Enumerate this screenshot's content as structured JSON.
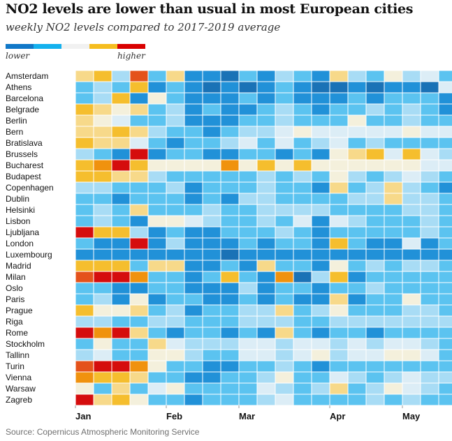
{
  "chart_data": {
    "type": "heatmap",
    "title": "NO2 levels are lower than usual in most European cities",
    "subtitle": "weekly NO2 levels compared to 2017-2019 average",
    "legend": {
      "low_label": "lower",
      "high_label": "higher",
      "scale": [
        -3,
        -2,
        -1,
        0,
        1,
        2
      ],
      "colors": [
        "#1178c8",
        "#14b1ee",
        "#f1f1f1",
        "#f5bd1f",
        "#d90000"
      ]
    },
    "palette": {
      "-3": "#1a72b6",
      "-2": "#2191d8",
      "-1": "#5bc3f0",
      "0": "#a8dcf5",
      "1": "#dcedf6",
      "2": "#f4f0dc",
      "3": "#f7d98a",
      "4": "#f5be2e",
      "5": "#f0920e",
      "6": "#e4521b",
      "7": "#d50d0d"
    },
    "weeks": 21,
    "month_ticks": [
      {
        "label": "Jan",
        "week": 0
      },
      {
        "label": "Feb",
        "week": 5
      },
      {
        "label": "Mar",
        "week": 9
      },
      {
        "label": "Apr",
        "week": 14
      },
      {
        "label": "May",
        "week": 18
      }
    ],
    "source": "Source: Copernicus Atmospheric Monitoring Service",
    "cities": [
      {
        "name": "Amsterdam",
        "values": [
          3,
          4,
          0,
          6,
          -1,
          3,
          -2,
          -2,
          -3,
          -1,
          -2,
          0,
          -1,
          -2,
          3,
          0,
          -1,
          2,
          0,
          1,
          -1
        ]
      },
      {
        "name": "Athens",
        "values": [
          -1,
          0,
          -1,
          4,
          -2,
          -1,
          -2,
          -3,
          -2,
          -3,
          -2,
          -1,
          -2,
          -3,
          -3,
          -2,
          -3,
          -2,
          -2,
          -3,
          1
        ]
      },
      {
        "name": "Barcelona",
        "values": [
          -1,
          0,
          4,
          -2,
          2,
          -1,
          -2,
          -2,
          -2,
          -1,
          -2,
          -1,
          -2,
          -2,
          -2,
          -1,
          -2,
          -1,
          -1,
          -1,
          -2
        ]
      },
      {
        "name": "Belgrade",
        "values": [
          4,
          3,
          2,
          3,
          -1,
          0,
          -2,
          -1,
          -2,
          -2,
          -1,
          0,
          -1,
          -2,
          -1,
          -1,
          0,
          -1,
          0,
          -1,
          -2
        ]
      },
      {
        "name": "Berlin",
        "values": [
          3,
          2,
          1,
          -1,
          -1,
          0,
          -2,
          -2,
          -2,
          -1,
          -1,
          0,
          -1,
          -1,
          -1,
          2,
          -1,
          -1,
          0,
          -1,
          -1
        ]
      },
      {
        "name": "Bern",
        "values": [
          3,
          3,
          4,
          3,
          0,
          -1,
          -1,
          -2,
          -1,
          0,
          0,
          1,
          2,
          1,
          1,
          1,
          1,
          1,
          2,
          1,
          1
        ]
      },
      {
        "name": "Bratislava",
        "values": [
          4,
          3,
          3,
          1,
          -1,
          -2,
          -1,
          -1,
          0,
          1,
          -1,
          1,
          -1,
          0,
          1,
          -1,
          0,
          -1,
          -1,
          -1,
          -1
        ]
      },
      {
        "name": "Brussels",
        "values": [
          0,
          -1,
          -2,
          7,
          -2,
          -1,
          -1,
          -2,
          -2,
          -1,
          -1,
          -2,
          -1,
          -2,
          2,
          3,
          4,
          1,
          4,
          1,
          0
        ]
      },
      {
        "name": "Bucharest",
        "values": [
          4,
          5,
          7,
          4,
          2,
          2,
          2,
          2,
          5,
          2,
          4,
          2,
          4,
          2,
          2,
          2,
          2,
          2,
          2,
          1,
          1
        ]
      },
      {
        "name": "Budapest",
        "values": [
          4,
          4,
          3,
          3,
          0,
          -1,
          -1,
          -1,
          -1,
          -1,
          0,
          -1,
          0,
          -1,
          2,
          0,
          -1,
          0,
          1,
          0,
          -1
        ]
      },
      {
        "name": "Copenhagen",
        "values": [
          0,
          0,
          -1,
          -1,
          -1,
          0,
          -2,
          -1,
          -1,
          -1,
          0,
          -1,
          -1,
          -2,
          3,
          -1,
          0,
          3,
          0,
          -1,
          -2
        ]
      },
      {
        "name": "Dublin",
        "values": [
          -1,
          -1,
          -2,
          -1,
          -1,
          -1,
          -2,
          -1,
          -2,
          0,
          0,
          -1,
          -1,
          -1,
          -1,
          0,
          0,
          3,
          0,
          0,
          -1
        ]
      },
      {
        "name": "Helsinki",
        "values": [
          -1,
          0,
          -1,
          3,
          -1,
          -1,
          -1,
          0,
          -1,
          -1,
          0,
          0,
          0,
          0,
          -1,
          -1,
          -1,
          -1,
          0,
          0,
          -1
        ]
      },
      {
        "name": "Lisbon",
        "values": [
          -1,
          0,
          -1,
          -2,
          2,
          2,
          1,
          0,
          -1,
          -1,
          0,
          -1,
          1,
          -2,
          1,
          0,
          -1,
          -1,
          -1,
          0,
          -1
        ]
      },
      {
        "name": "Ljubljana",
        "values": [
          7,
          4,
          4,
          0,
          -2,
          -1,
          -2,
          -2,
          -1,
          -1,
          -1,
          0,
          -1,
          -2,
          -1,
          -1,
          -1,
          -1,
          -1,
          0,
          -1
        ]
      },
      {
        "name": "London",
        "values": [
          -1,
          -2,
          -2,
          7,
          -2,
          0,
          -2,
          -2,
          -2,
          -1,
          -2,
          -1,
          -1,
          -2,
          4,
          -1,
          -2,
          -2,
          1,
          -2,
          -1
        ]
      },
      {
        "name": "Luxembourg",
        "values": [
          -2,
          -2,
          -2,
          -2,
          -2,
          -2,
          -2,
          -2,
          -3,
          -2,
          -2,
          -2,
          -2,
          -2,
          -2,
          -2,
          -2,
          -2,
          -2,
          -2,
          -2
        ]
      },
      {
        "name": "Madrid",
        "values": [
          4,
          4,
          4,
          -1,
          3,
          3,
          -2,
          -2,
          -1,
          -2,
          3,
          -1,
          -1,
          -2,
          2,
          -1,
          0,
          -1,
          0,
          0,
          -1
        ]
      },
      {
        "name": "Milan",
        "values": [
          6,
          7,
          7,
          5,
          -1,
          -1,
          -2,
          -1,
          4,
          -1,
          -2,
          5,
          -3,
          0,
          4,
          -2,
          -1,
          -1,
          -1,
          -1,
          -1
        ]
      },
      {
        "name": "Oslo",
        "values": [
          -1,
          -1,
          -2,
          -2,
          -1,
          -1,
          -2,
          -2,
          -2,
          0,
          -2,
          -1,
          -1,
          -2,
          -1,
          -1,
          0,
          -1,
          -1,
          -1,
          -1
        ]
      },
      {
        "name": "Paris",
        "values": [
          -1,
          0,
          -2,
          2,
          -2,
          -1,
          -1,
          -2,
          -2,
          -1,
          -2,
          -1,
          -2,
          -2,
          3,
          -2,
          -1,
          -1,
          2,
          -1,
          -1
        ]
      },
      {
        "name": "Prague",
        "values": [
          4,
          2,
          2,
          3,
          -1,
          0,
          -2,
          -1,
          -1,
          0,
          0,
          3,
          -1,
          0,
          2,
          -1,
          -1,
          -1,
          0,
          0,
          -1
        ]
      },
      {
        "name": "Riga",
        "values": [
          0,
          0,
          -1,
          -1,
          0,
          0,
          -1,
          -1,
          -1,
          0,
          0,
          0,
          -1,
          -1,
          0,
          0,
          0,
          0,
          0,
          0,
          0
        ]
      },
      {
        "name": "Rome",
        "values": [
          7,
          5,
          7,
          3,
          -1,
          -2,
          -1,
          -1,
          -2,
          -1,
          -2,
          3,
          -1,
          -2,
          -1,
          -1,
          -2,
          -1,
          -1,
          -1,
          -1
        ]
      },
      {
        "name": "Stockholm",
        "values": [
          -1,
          2,
          -1,
          -1,
          3,
          1,
          0,
          0,
          0,
          1,
          1,
          0,
          1,
          1,
          0,
          1,
          0,
          1,
          1,
          0,
          -1
        ]
      },
      {
        "name": "Tallinn",
        "values": [
          0,
          1,
          -1,
          -1,
          2,
          2,
          0,
          -1,
          -1,
          1,
          1,
          0,
          1,
          2,
          0,
          1,
          1,
          2,
          2,
          1,
          -1
        ]
      },
      {
        "name": "Turin",
        "values": [
          6,
          7,
          7,
          5,
          2,
          -1,
          -1,
          -2,
          -2,
          -1,
          -1,
          0,
          -1,
          -2,
          -1,
          -1,
          -1,
          -1,
          -1,
          -1,
          -1
        ]
      },
      {
        "name": "Vienna",
        "values": [
          5,
          4,
          4,
          3,
          -1,
          -1,
          -2,
          -2,
          -1,
          -1,
          0,
          2,
          -1,
          -1,
          1,
          0,
          -1,
          0,
          1,
          0,
          0
        ]
      },
      {
        "name": "Warsaw",
        "values": [
          2,
          -1,
          3,
          -1,
          1,
          2,
          -1,
          -1,
          -1,
          -1,
          1,
          0,
          -1,
          0,
          3,
          -1,
          0,
          2,
          1,
          0,
          -1
        ]
      },
      {
        "name": "Zagreb",
        "values": [
          7,
          3,
          4,
          2,
          -1,
          -1,
          -2,
          -1,
          -1,
          -1,
          0,
          1,
          -1,
          -1,
          -1,
          -1,
          0,
          -1,
          0,
          -1,
          -1
        ]
      }
    ]
  }
}
